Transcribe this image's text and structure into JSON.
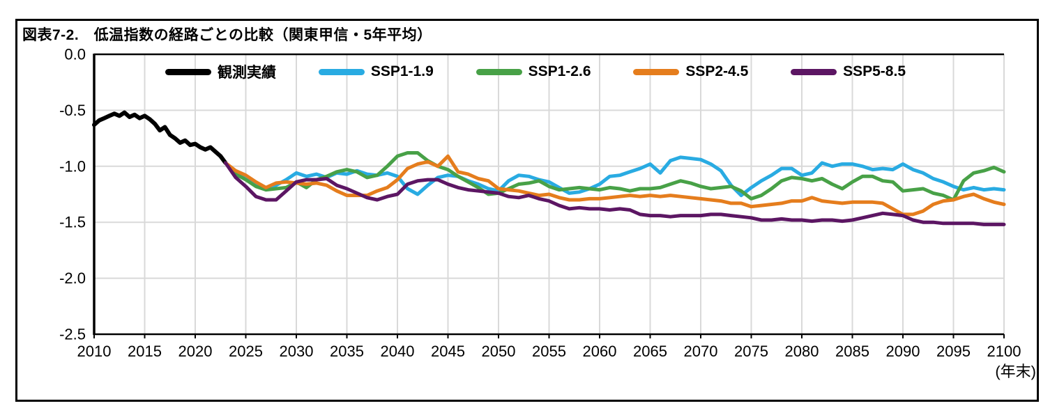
{
  "figure": {
    "title": "図表7-2.　低温指数の経路ごとの比較（関東甲信・5年平均）",
    "x_axis_unit": "(年末)"
  },
  "chart_data": {
    "type": "line",
    "title": "図表7-2.　低温指数の経路ごとの比較（関東甲信・5年平均）",
    "x_axis_unit": "(年末)",
    "x_range": [
      2010,
      2100
    ],
    "y_range": [
      -2.5,
      0.0
    ],
    "x_ticks": [
      2010,
      2015,
      2020,
      2025,
      2030,
      2035,
      2040,
      2045,
      2050,
      2055,
      2060,
      2065,
      2070,
      2075,
      2080,
      2085,
      2090,
      2095,
      2100
    ],
    "y_ticks": [
      0.0,
      -0.5,
      -1.0,
      -1.5,
      -2.0,
      -2.5
    ],
    "grid": true,
    "legend_position": "top",
    "grid_color": "#D9D9D9",
    "axis_color": "#000000",
    "series": [
      {
        "name": "観測実績",
        "color": "#000000",
        "width": 6,
        "start_year": 2010,
        "step": 0.5,
        "values": [
          -0.63,
          -0.59,
          -0.57,
          -0.55,
          -0.53,
          -0.55,
          -0.52,
          -0.56,
          -0.54,
          -0.57,
          -0.55,
          -0.58,
          -0.62,
          -0.68,
          -0.65,
          -0.72,
          -0.75,
          -0.79,
          -0.77,
          -0.81,
          -0.8,
          -0.83,
          -0.85,
          -0.83,
          -0.87,
          -0.91,
          -0.97
        ]
      },
      {
        "name": "SSP1-1.9",
        "color": "#29ABE2",
        "width": 5,
        "start_year": 2023,
        "step": 1,
        "values": [
          -0.97,
          -1.06,
          -1.1,
          -1.17,
          -1.2,
          -1.17,
          -1.12,
          -1.06,
          -1.09,
          -1.07,
          -1.1,
          -1.06,
          -1.07,
          -1.04,
          -1.07,
          -1.08,
          -1.06,
          -1.09,
          -1.2,
          -1.25,
          -1.17,
          -1.1,
          -1.08,
          -1.09,
          -1.13,
          -1.16,
          -1.2,
          -1.22,
          -1.13,
          -1.08,
          -1.09,
          -1.12,
          -1.14,
          -1.19,
          -1.24,
          -1.23,
          -1.2,
          -1.16,
          -1.09,
          -1.08,
          -1.05,
          -1.02,
          -0.98,
          -1.06,
          -0.95,
          -0.92,
          -0.93,
          -0.94,
          -0.98,
          -1.04,
          -1.17,
          -1.26,
          -1.19,
          -1.13,
          -1.08,
          -1.02,
          -1.02,
          -1.08,
          -1.06,
          -0.97,
          -1.0,
          -0.98,
          -0.98,
          -1.0,
          -1.03,
          -1.02,
          -1.03,
          -0.98,
          -1.03,
          -1.06,
          -1.11,
          -1.14,
          -1.18,
          -1.21,
          -1.19,
          -1.21,
          -1.2,
          -1.21
        ]
      },
      {
        "name": "SSP1-2.6",
        "color": "#48A147",
        "width": 5,
        "start_year": 2023,
        "step": 1,
        "values": [
          -0.97,
          -1.07,
          -1.12,
          -1.18,
          -1.21,
          -1.2,
          -1.19,
          -1.14,
          -1.19,
          -1.12,
          -1.09,
          -1.05,
          -1.03,
          -1.05,
          -1.1,
          -1.08,
          -1.0,
          -0.91,
          -0.88,
          -0.88,
          -0.95,
          -1.0,
          -1.03,
          -1.09,
          -1.14,
          -1.19,
          -1.25,
          -1.24,
          -1.2,
          -1.16,
          -1.15,
          -1.13,
          -1.18,
          -1.21,
          -1.2,
          -1.19,
          -1.2,
          -1.21,
          -1.19,
          -1.2,
          -1.22,
          -1.2,
          -1.2,
          -1.19,
          -1.16,
          -1.13,
          -1.15,
          -1.18,
          -1.2,
          -1.19,
          -1.18,
          -1.22,
          -1.29,
          -1.26,
          -1.2,
          -1.13,
          -1.1,
          -1.11,
          -1.13,
          -1.11,
          -1.16,
          -1.2,
          -1.14,
          -1.09,
          -1.09,
          -1.13,
          -1.14,
          -1.22,
          -1.21,
          -1.2,
          -1.24,
          -1.26,
          -1.3,
          -1.13,
          -1.06,
          -1.04,
          -1.01,
          -1.05
        ]
      },
      {
        "name": "SSP2-4.5",
        "color": "#E57D1D",
        "width": 5,
        "start_year": 2023,
        "step": 1,
        "values": [
          -0.97,
          -1.04,
          -1.08,
          -1.14,
          -1.19,
          -1.15,
          -1.14,
          -1.15,
          -1.16,
          -1.15,
          -1.17,
          -1.22,
          -1.26,
          -1.26,
          -1.26,
          -1.22,
          -1.19,
          -1.12,
          -1.02,
          -0.98,
          -0.96,
          -1.0,
          -0.91,
          -1.05,
          -1.07,
          -1.11,
          -1.13,
          -1.2,
          -1.21,
          -1.22,
          -1.24,
          -1.26,
          -1.25,
          -1.28,
          -1.3,
          -1.3,
          -1.29,
          -1.29,
          -1.28,
          -1.27,
          -1.26,
          -1.27,
          -1.26,
          -1.27,
          -1.26,
          -1.27,
          -1.28,
          -1.29,
          -1.3,
          -1.31,
          -1.33,
          -1.33,
          -1.36,
          -1.35,
          -1.34,
          -1.33,
          -1.31,
          -1.31,
          -1.28,
          -1.31,
          -1.32,
          -1.33,
          -1.32,
          -1.32,
          -1.32,
          -1.33,
          -1.38,
          -1.43,
          -1.43,
          -1.4,
          -1.34,
          -1.31,
          -1.3,
          -1.27,
          -1.25,
          -1.29,
          -1.32,
          -1.34
        ]
      },
      {
        "name": "SSP5-8.5",
        "color": "#5C1663",
        "width": 5,
        "start_year": 2023,
        "step": 1,
        "values": [
          -0.97,
          -1.1,
          -1.18,
          -1.27,
          -1.3,
          -1.3,
          -1.22,
          -1.14,
          -1.12,
          -1.12,
          -1.11,
          -1.17,
          -1.2,
          -1.24,
          -1.28,
          -1.3,
          -1.27,
          -1.25,
          -1.16,
          -1.13,
          -1.12,
          -1.12,
          -1.16,
          -1.19,
          -1.21,
          -1.22,
          -1.23,
          -1.24,
          -1.27,
          -1.28,
          -1.26,
          -1.29,
          -1.31,
          -1.35,
          -1.38,
          -1.37,
          -1.38,
          -1.38,
          -1.39,
          -1.38,
          -1.39,
          -1.43,
          -1.44,
          -1.44,
          -1.45,
          -1.44,
          -1.44,
          -1.44,
          -1.43,
          -1.43,
          -1.44,
          -1.45,
          -1.46,
          -1.48,
          -1.48,
          -1.47,
          -1.48,
          -1.48,
          -1.49,
          -1.48,
          -1.48,
          -1.49,
          -1.48,
          -1.46,
          -1.44,
          -1.42,
          -1.43,
          -1.44,
          -1.48,
          -1.5,
          -1.5,
          -1.51,
          -1.51,
          -1.51,
          -1.51,
          -1.52,
          -1.52,
          -1.52
        ]
      }
    ]
  }
}
